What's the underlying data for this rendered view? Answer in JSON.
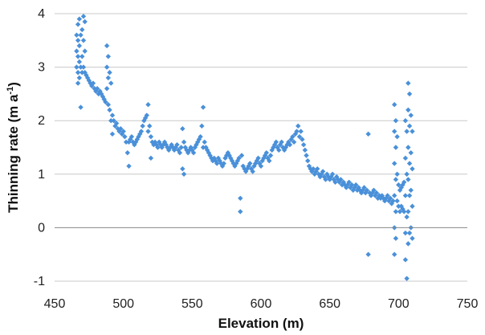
{
  "chart_data": {
    "type": "scatter",
    "title": "",
    "xlabel": "Elevation (m)",
    "ylabel": "Thinning rate (m a",
    "ylabel_sup": "-1",
    "ylabel_close": ")",
    "xlim": [
      450,
      750
    ],
    "ylim": [
      -1,
      4
    ],
    "x_ticks": [
      450,
      500,
      550,
      600,
      650,
      700,
      750
    ],
    "y_ticks": [
      -1,
      0,
      1,
      2,
      3,
      4
    ],
    "grid": true,
    "legend": "none",
    "marker": "diamond",
    "color": "#4a90d9",
    "gridline_color": "#c8c8c8",
    "series": [
      {
        "name": "",
        "points": [
          [
            466,
            3.6
          ],
          [
            466,
            3.3
          ],
          [
            466,
            3.0
          ],
          [
            467,
            3.8
          ],
          [
            467,
            3.5
          ],
          [
            467,
            3.2
          ],
          [
            467,
            2.9
          ],
          [
            467,
            2.7
          ],
          [
            468,
            3.9
          ],
          [
            468,
            3.4
          ],
          [
            468,
            3.1
          ],
          [
            468,
            2.8
          ],
          [
            469,
            3.6
          ],
          [
            469,
            3.0
          ],
          [
            469,
            2.25
          ],
          [
            470,
            3.7
          ],
          [
            470,
            3.2
          ],
          [
            470,
            2.9
          ],
          [
            471,
            3.95
          ],
          [
            471,
            3.5
          ],
          [
            471,
            3.0
          ],
          [
            472,
            3.85
          ],
          [
            472,
            3.3
          ],
          [
            472,
            2.9
          ],
          [
            473,
            2.85
          ],
          [
            474,
            2.8
          ],
          [
            475,
            2.75
          ],
          [
            476,
            2.7
          ],
          [
            477,
            2.65
          ],
          [
            478,
            2.7
          ],
          [
            479,
            2.6
          ],
          [
            480,
            2.55
          ],
          [
            481,
            2.6
          ],
          [
            482,
            2.5
          ],
          [
            483,
            2.55
          ],
          [
            484,
            2.5
          ],
          [
            485,
            2.45
          ],
          [
            486,
            2.4
          ],
          [
            487,
            2.35
          ],
          [
            488,
            3.4
          ],
          [
            488,
            3.0
          ],
          [
            488,
            2.6
          ],
          [
            489,
            3.2
          ],
          [
            489,
            2.8
          ],
          [
            489,
            2.3
          ],
          [
            490,
            2.9
          ],
          [
            490,
            2.2
          ],
          [
            491,
            2.7
          ],
          [
            491,
            2.0
          ],
          [
            492,
            2.1
          ],
          [
            492,
            1.75
          ],
          [
            493,
            2.0
          ],
          [
            494,
            1.9
          ],
          [
            495,
            1.95
          ],
          [
            496,
            1.85
          ],
          [
            497,
            1.8
          ],
          [
            498,
            1.85
          ],
          [
            499,
            1.75
          ],
          [
            500,
            1.8
          ],
          [
            501,
            1.7
          ],
          [
            502,
            1.6
          ],
          [
            503,
            1.4
          ],
          [
            504,
            1.15
          ],
          [
            504,
            1.6
          ],
          [
            505,
            1.65
          ],
          [
            506,
            1.7
          ],
          [
            507,
            1.6
          ],
          [
            508,
            1.55
          ],
          [
            509,
            1.6
          ],
          [
            510,
            1.65
          ],
          [
            511,
            1.7
          ],
          [
            512,
            1.75
          ],
          [
            513,
            1.8
          ],
          [
            514,
            1.9
          ],
          [
            515,
            2.0
          ],
          [
            516,
            2.05
          ],
          [
            517,
            2.1
          ],
          [
            518,
            2.3
          ],
          [
            518,
            1.8
          ],
          [
            519,
            1.9
          ],
          [
            520,
            1.7
          ],
          [
            520,
            1.3
          ],
          [
            521,
            1.6
          ],
          [
            522,
            1.55
          ],
          [
            523,
            1.6
          ],
          [
            524,
            1.55
          ],
          [
            525,
            1.5
          ],
          [
            526,
            1.6
          ],
          [
            527,
            1.55
          ],
          [
            528,
            1.5
          ],
          [
            529,
            1.55
          ],
          [
            530,
            1.6
          ],
          [
            531,
            1.55
          ],
          [
            532,
            1.5
          ],
          [
            533,
            1.45
          ],
          [
            534,
            1.5
          ],
          [
            535,
            1.55
          ],
          [
            536,
            1.5
          ],
          [
            537,
            1.45
          ],
          [
            538,
            1.5
          ],
          [
            539,
            1.55
          ],
          [
            540,
            1.45
          ],
          [
            541,
            1.4
          ],
          [
            542,
            1.5
          ],
          [
            543,
            1.85
          ],
          [
            543,
            1.1
          ],
          [
            544,
            1.0
          ],
          [
            544,
            1.6
          ],
          [
            545,
            1.5
          ],
          [
            546,
            1.45
          ],
          [
            547,
            1.4
          ],
          [
            548,
            1.45
          ],
          [
            549,
            1.5
          ],
          [
            550,
            1.45
          ],
          [
            551,
            1.4
          ],
          [
            552,
            1.5
          ],
          [
            553,
            1.55
          ],
          [
            554,
            1.6
          ],
          [
            555,
            1.65
          ],
          [
            556,
            1.7
          ],
          [
            557,
            1.9
          ],
          [
            558,
            2.25
          ],
          [
            558,
            1.5
          ],
          [
            559,
            1.6
          ],
          [
            560,
            1.5
          ],
          [
            561,
            1.45
          ],
          [
            562,
            1.4
          ],
          [
            563,
            1.35
          ],
          [
            564,
            1.3
          ],
          [
            565,
            1.25
          ],
          [
            566,
            1.3
          ],
          [
            567,
            1.25
          ],
          [
            568,
            1.2
          ],
          [
            569,
            1.3
          ],
          [
            570,
            1.25
          ],
          [
            571,
            1.2
          ],
          [
            572,
            1.15
          ],
          [
            573,
            1.2
          ],
          [
            574,
            1.3
          ],
          [
            575,
            1.35
          ],
          [
            576,
            1.4
          ],
          [
            577,
            1.35
          ],
          [
            578,
            1.3
          ],
          [
            579,
            1.25
          ],
          [
            580,
            1.2
          ],
          [
            581,
            1.15
          ],
          [
            582,
            1.2
          ],
          [
            583,
            1.25
          ],
          [
            584,
            1.3
          ],
          [
            585,
            0.55
          ],
          [
            585,
            0.3
          ],
          [
            586,
            1.35
          ],
          [
            587,
            1.15
          ],
          [
            588,
            1.1
          ],
          [
            589,
            1.05
          ],
          [
            590,
            1.1
          ],
          [
            591,
            1.15
          ],
          [
            592,
            1.2
          ],
          [
            593,
            1.1
          ],
          [
            594,
            1.05
          ],
          [
            595,
            1.15
          ],
          [
            596,
            1.2
          ],
          [
            597,
            1.25
          ],
          [
            598,
            1.3
          ],
          [
            599,
            1.2
          ],
          [
            600,
            1.15
          ],
          [
            601,
            1.25
          ],
          [
            602,
            1.3
          ],
          [
            603,
            1.35
          ],
          [
            604,
            1.4
          ],
          [
            605,
            1.3
          ],
          [
            606,
            1.25
          ],
          [
            607,
            1.35
          ],
          [
            608,
            1.45
          ],
          [
            609,
            1.5
          ],
          [
            610,
            1.55
          ],
          [
            611,
            1.6
          ],
          [
            612,
            1.5
          ],
          [
            613,
            1.45
          ],
          [
            614,
            1.55
          ],
          [
            615,
            1.6
          ],
          [
            616,
            1.5
          ],
          [
            617,
            1.45
          ],
          [
            618,
            1.5
          ],
          [
            619,
            1.55
          ],
          [
            620,
            1.6
          ],
          [
            621,
            1.55
          ],
          [
            622,
            1.65
          ],
          [
            623,
            1.7
          ],
          [
            624,
            1.6
          ],
          [
            625,
            1.75
          ],
          [
            626,
            1.8
          ],
          [
            627,
            1.9
          ],
          [
            628,
            1.7
          ],
          [
            629,
            1.8
          ],
          [
            630,
            1.65
          ],
          [
            631,
            1.55
          ],
          [
            632,
            1.45
          ],
          [
            633,
            1.35
          ],
          [
            634,
            1.25
          ],
          [
            635,
            1.15
          ],
          [
            636,
            1.1
          ],
          [
            637,
            1.05
          ],
          [
            638,
            1.1
          ],
          [
            639,
            1.0
          ],
          [
            640,
            1.05
          ],
          [
            641,
            1.1
          ],
          [
            642,
            1.0
          ],
          [
            643,
            0.95
          ],
          [
            644,
            1.0
          ],
          [
            645,
            1.05
          ],
          [
            646,
            0.95
          ],
          [
            647,
            0.9
          ],
          [
            648,
            1.0
          ],
          [
            649,
            0.95
          ],
          [
            650,
            0.9
          ],
          [
            651,
            0.95
          ],
          [
            652,
            1.0
          ],
          [
            653,
            0.9
          ],
          [
            654,
            0.85
          ],
          [
            655,
            0.95
          ],
          [
            656,
            0.9
          ],
          [
            657,
            0.85
          ],
          [
            658,
            0.9
          ],
          [
            659,
            0.8
          ],
          [
            660,
            0.85
          ],
          [
            661,
            0.8
          ],
          [
            662,
            0.75
          ],
          [
            663,
            0.8
          ],
          [
            664,
            0.85
          ],
          [
            665,
            0.75
          ],
          [
            666,
            0.8
          ],
          [
            667,
            0.7
          ],
          [
            668,
            0.75
          ],
          [
            669,
            0.8
          ],
          [
            670,
            0.7
          ],
          [
            671,
            0.75
          ],
          [
            672,
            0.7
          ],
          [
            673,
            0.65
          ],
          [
            674,
            0.7
          ],
          [
            675,
            0.75
          ],
          [
            676,
            0.65
          ],
          [
            677,
            0.7
          ],
          [
            678,
            1.75
          ],
          [
            678,
            -0.5
          ],
          [
            679,
            0.65
          ],
          [
            680,
            0.6
          ],
          [
            681,
            0.65
          ],
          [
            682,
            0.7
          ],
          [
            683,
            0.6
          ],
          [
            684,
            0.65
          ],
          [
            685,
            0.55
          ],
          [
            686,
            0.6
          ],
          [
            687,
            0.55
          ],
          [
            688,
            0.6
          ],
          [
            689,
            0.55
          ],
          [
            690,
            0.5
          ],
          [
            691,
            0.55
          ],
          [
            692,
            0.6
          ],
          [
            693,
            0.5
          ],
          [
            694,
            0.55
          ],
          [
            695,
            0.45
          ],
          [
            696,
            0.5
          ],
          [
            697,
            2.3
          ],
          [
            697,
            1.8
          ],
          [
            697,
            1.2
          ],
          [
            697,
            0.6
          ],
          [
            697,
            0.0
          ],
          [
            697,
            -0.5
          ],
          [
            698,
            2.0
          ],
          [
            698,
            1.5
          ],
          [
            698,
            0.9
          ],
          [
            698,
            0.3
          ],
          [
            698,
            -0.2
          ],
          [
            699,
            1.7
          ],
          [
            699,
            1.0
          ],
          [
            699,
            0.5
          ],
          [
            700,
            0.8
          ],
          [
            700,
            0.4
          ],
          [
            701,
            0.7
          ],
          [
            701,
            0.3
          ],
          [
            702,
            0.75
          ],
          [
            702,
            0.4
          ],
          [
            703,
            0.8
          ],
          [
            703,
            0.35
          ],
          [
            704,
            0.85
          ],
          [
            704,
            0.3
          ],
          [
            705,
            2.0
          ],
          [
            705,
            1.3
          ],
          [
            705,
            0.6
          ],
          [
            705,
            -0.1
          ],
          [
            705,
            -0.6
          ],
          [
            706,
            1.8
          ],
          [
            706,
            1.0
          ],
          [
            706,
            0.2
          ],
          [
            706,
            -0.95
          ],
          [
            707,
            2.7
          ],
          [
            707,
            2.2
          ],
          [
            707,
            1.5
          ],
          [
            707,
            0.9
          ],
          [
            707,
            0.3
          ],
          [
            707,
            -0.3
          ],
          [
            708,
            2.5
          ],
          [
            708,
            1.9
          ],
          [
            708,
            1.2
          ],
          [
            708,
            0.6
          ],
          [
            708,
            -0.1
          ],
          [
            709,
            2.1
          ],
          [
            709,
            1.4
          ],
          [
            709,
            0.7
          ],
          [
            709,
            0.0
          ],
          [
            710,
            1.8
          ],
          [
            710,
            1.1
          ],
          [
            710,
            0.4
          ],
          [
            710,
            -0.2
          ]
        ]
      }
    ]
  }
}
